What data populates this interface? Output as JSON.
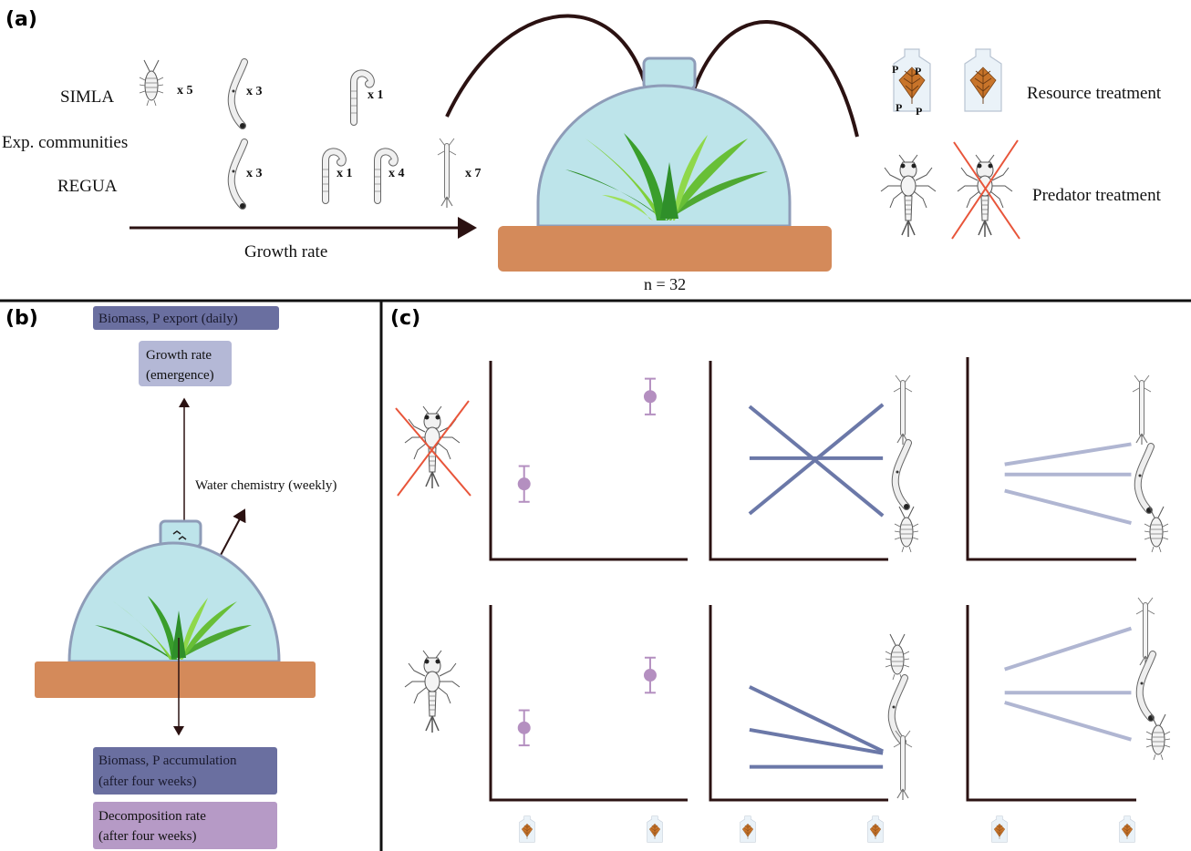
{
  "panels": {
    "a": "(a)",
    "b": "(b)",
    "c": "(c)"
  },
  "panel_a": {
    "site_simla": "SIMLA",
    "exp_communities": "Exp.  communities",
    "site_regua": "REGUA",
    "multipliers": {
      "simla_isopod": "x 5",
      "simla_larva1": "x 3",
      "simla_larva2": "x 1",
      "regua_larva1": "x 3",
      "regua_larva2": "x 1",
      "regua_larva3": "x 4",
      "regua_larva4": "x 7"
    },
    "growth_rate": "Growth rate",
    "n_label": "n = 32",
    "resource_treatment": "Resource treatment",
    "predator_treatment": "Predator treatment",
    "bag_letter": "P"
  },
  "panel_b": {
    "biomass_p_export": "Biomass, P export (daily)",
    "growth_rate_line1": "Growth rate",
    "growth_rate_line2": "(emergence)",
    "water_chemistry": "Water chemistry (weekly)",
    "biomass_accum_line1": "Biomass, P accumulation",
    "biomass_accum_line2": "(after four weeks)",
    "decomp_line1": "Decomposition rate",
    "decomp_line2": "(after four weeks)"
  },
  "colors": {
    "soil": "#d48a5a",
    "dome": "#bde4ea",
    "dome_stroke": "#8e9cb8",
    "plant_dark": "#2f8f2a",
    "plant_light": "#7fcf3a",
    "arrow": "#2b1212",
    "export_box": "#6a6fa0",
    "growth_box": "#b4b8d6",
    "decomp_box": "#b69ac6",
    "point": "#b48fc0",
    "line_dark": "#6b78a8",
    "line_light": "#b0b6d2",
    "cross_red": "#e8553a",
    "leaf": "#c8742a"
  },
  "icons": {
    "isopod": "isopod-icon",
    "larva": "chironomid-larva-icon",
    "hooked_larva": "hooked-larva-icon",
    "nymph": "damselfly-nymph-icon",
    "predator": "predator-larva-icon",
    "bag": "leaf-bag-icon"
  },
  "chart_data": [
    {
      "type": "scatter",
      "row": "no-predator",
      "x": [
        "low resource",
        "high resource"
      ],
      "y": [
        0.38,
        0.82
      ],
      "err": [
        0.09,
        0.09
      ],
      "ylim": [
        0,
        1
      ]
    },
    {
      "type": "line",
      "row": "no-predator",
      "series": [
        {
          "y": [
            0.77,
            0.22
          ]
        },
        {
          "y": [
            0.51,
            0.51
          ]
        },
        {
          "y": [
            0.23,
            0.78
          ]
        }
      ],
      "ylim": [
        0,
        1
      ]
    },
    {
      "type": "line",
      "row": "no-predator",
      "series": [
        {
          "y": [
            0.47,
            0.57
          ]
        },
        {
          "y": [
            0.42,
            0.42
          ]
        },
        {
          "y": [
            0.34,
            0.18
          ]
        }
      ],
      "ylim": [
        0,
        1
      ]
    },
    {
      "type": "scatter",
      "row": "predator",
      "x": [
        "low resource",
        "high resource"
      ],
      "y": [
        0.37,
        0.64
      ],
      "err": [
        0.09,
        0.09
      ],
      "ylim": [
        0,
        1
      ]
    },
    {
      "type": "line",
      "row": "predator",
      "series": [
        {
          "y": [
            0.58,
            0.25
          ]
        },
        {
          "y": [
            0.36,
            0.24
          ]
        },
        {
          "y": [
            0.17,
            0.17
          ]
        }
      ],
      "ylim": [
        0,
        1
      ]
    },
    {
      "type": "line",
      "row": "predator",
      "series": [
        {
          "y": [
            0.67,
            0.88
          ]
        },
        {
          "y": [
            0.55,
            0.55
          ]
        },
        {
          "y": [
            0.5,
            0.31
          ]
        }
      ],
      "ylim": [
        0,
        1
      ]
    }
  ]
}
